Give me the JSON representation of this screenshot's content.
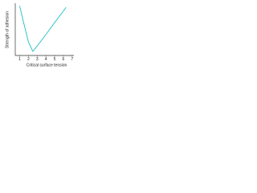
{
  "chart_data": {
    "type": "line",
    "x_label": "Critical surface tension",
    "y_label": "Strength of adhesion",
    "x": [
      1.0,
      1.5,
      2.0,
      2.5,
      3.0,
      4.0,
      5.0,
      6.0,
      6.3
    ],
    "series": [
      {
        "color": "#33c4c4",
        "values": [
          9.5,
          6.0,
          2.6,
          0.8,
          1.8,
          4.0,
          6.3,
          8.5,
          9.2
        ]
      }
    ],
    "xlim": [
      0.5,
      7.2
    ],
    "xticks": [
      1,
      2,
      3,
      4,
      5,
      6,
      7
    ],
    "ylim": [
      0,
      10
    ]
  }
}
